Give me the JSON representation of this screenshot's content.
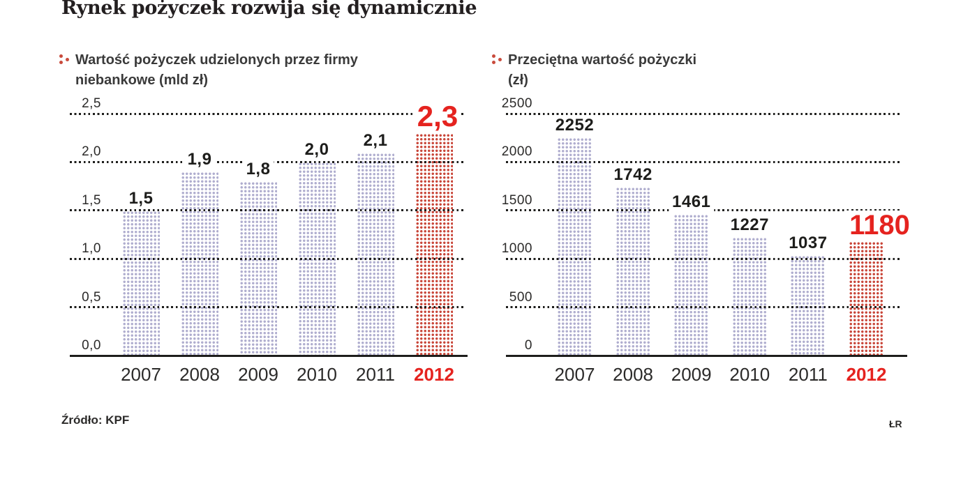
{
  "title": "Rynek pożyczek rozwija się dynamicznie",
  "source_note": "Źródło: KPF",
  "credit": "ŁR",
  "colors": {
    "accent_red": "#e5231f",
    "bar_red": "#c9473a",
    "bar_lavender": "#b0aecf",
    "grid_black": "#1d1d1b",
    "bullet_red": "#c94b3c"
  },
  "chart_data": [
    {
      "type": "bar",
      "title": "Wartość pożyczek udzielonych przez firmy niebankowe (mld zł)",
      "title_lines": [
        "Wartość pożyczek udzielonych przez firmy",
        "niebankowe (mld zł)"
      ],
      "categories": [
        "2007",
        "2008",
        "2009",
        "2010",
        "2011",
        "2012"
      ],
      "values": [
        1.5,
        1.9,
        1.8,
        2.0,
        2.1,
        2.3
      ],
      "value_labels": [
        "1,5",
        "1,9",
        "1,8",
        "2,0",
        "2,1",
        "2,3"
      ],
      "yticks": [
        2.5,
        2.0,
        1.5,
        1.0,
        0.5,
        0.0
      ],
      "ytick_labels": [
        "2,5",
        "2,0",
        "1,5",
        "1,0",
        "0,5",
        "0,0"
      ],
      "ylim": [
        0,
        2.5
      ],
      "xlabel": "",
      "ylabel": "",
      "grid": true,
      "legend": false,
      "highlight_index": 5,
      "highlight_year": "2012"
    },
    {
      "type": "bar",
      "title": "Przeciętna wartość pożyczki (zł)",
      "title_lines": [
        "Przeciętna wartość pożyczki",
        "(zł)"
      ],
      "categories": [
        "2007",
        "2008",
        "2009",
        "2010",
        "2011",
        "2012"
      ],
      "values": [
        2252,
        1742,
        1461,
        1227,
        1037,
        1180
      ],
      "value_labels": [
        "2252",
        "1742",
        "1461",
        "1227",
        "1037",
        "1180"
      ],
      "yticks": [
        2500,
        2000,
        1500,
        1000,
        500,
        0
      ],
      "ytick_labels": [
        "2500",
        "2000",
        "1500",
        "1000",
        "500",
        "0"
      ],
      "ylim": [
        0,
        2500
      ],
      "xlabel": "",
      "ylabel": "",
      "grid": true,
      "legend": false,
      "highlight_index": 5,
      "highlight_year": "2012"
    }
  ]
}
